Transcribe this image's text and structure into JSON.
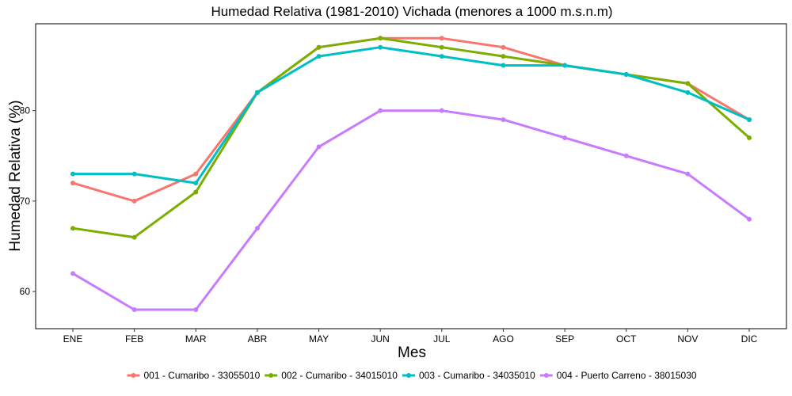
{
  "chart_data": {
    "type": "line",
    "title": "Humedad Relativa (1981-2010) Vichada (menores a 1000 m.s.n.m)",
    "xlabel": "Mes",
    "ylabel": "Humedad Relativa (%)",
    "categories": [
      "ENE",
      "FEB",
      "MAR",
      "ABR",
      "MAY",
      "JUN",
      "JUL",
      "AGO",
      "SEP",
      "OCT",
      "NOV",
      "DIC"
    ],
    "ylim": [
      55.9,
      89.6
    ],
    "yticks": [
      60,
      70,
      80
    ],
    "grid": false,
    "legend_position": "bottom",
    "series": [
      {
        "name": "001 - Cumaribo - 33055010",
        "color": "#F8766D",
        "values": [
          72,
          70,
          73,
          82,
          87,
          88,
          88,
          87,
          85,
          84,
          83,
          79
        ]
      },
      {
        "name": "002 - Cumaribo - 34015010",
        "color": "#7CAE00",
        "values": [
          67,
          66,
          71,
          82,
          87,
          88,
          87,
          86,
          85,
          84,
          83,
          77
        ]
      },
      {
        "name": "003 - Cumaribo - 34035010",
        "color": "#00BFC4",
        "values": [
          73,
          73,
          72,
          82,
          86,
          87,
          86,
          85,
          85,
          84,
          82,
          79
        ]
      },
      {
        "name": "004 - Puerto Carreno - 38015030",
        "color": "#C77CFF",
        "values": [
          62,
          58,
          58,
          67,
          76,
          80,
          80,
          79,
          77,
          75,
          73,
          68
        ]
      }
    ]
  }
}
